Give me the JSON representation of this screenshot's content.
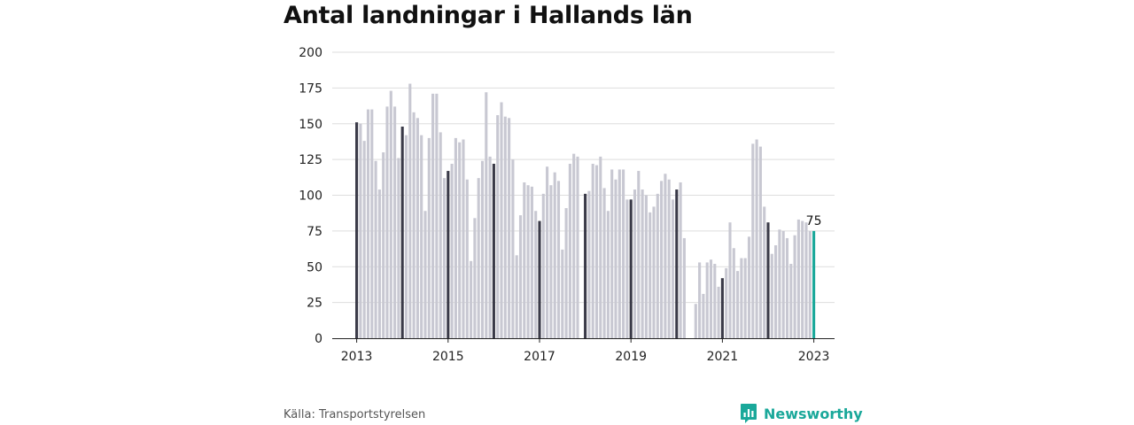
{
  "title": "Antal landningar i Hallands län",
  "source": "Källa: Transportstyrelsen",
  "brand": {
    "name": "Newsworthy",
    "icon": "newsworthy-logo-icon",
    "color": "#1aa89a"
  },
  "colors": {
    "bar": "#c8c8d2",
    "january": "#3a3a48",
    "latest": "#1aa89a",
    "grid": "#dddddd",
    "axis": "#222222"
  },
  "chart_data": {
    "type": "bar",
    "title": "Antal landningar i Hallands län",
    "xlabel": "",
    "ylabel": "",
    "ylim": [
      0,
      200
    ],
    "yticks": [
      0,
      25,
      50,
      75,
      100,
      125,
      150,
      175,
      200
    ],
    "xtick_labels": [
      "2013",
      "2015",
      "2017",
      "2019",
      "2021",
      "2023"
    ],
    "grid": true,
    "start": "2013-01",
    "interval": "month",
    "values": [
      151,
      150,
      138,
      160,
      160,
      124,
      104,
      130,
      162,
      173,
      162,
      126,
      148,
      142,
      178,
      158,
      154,
      142,
      89,
      140,
      171,
      171,
      144,
      112,
      117,
      122,
      140,
      137,
      139,
      111,
      54,
      84,
      112,
      124,
      172,
      127,
      122,
      156,
      165,
      155,
      154,
      125,
      58,
      86,
      109,
      107,
      106,
      89,
      82,
      101,
      120,
      107,
      116,
      110,
      62,
      91,
      122,
      129,
      127,
      0,
      101,
      103,
      122,
      121,
      127,
      105,
      89,
      118,
      111,
      118,
      118,
      97,
      97,
      104,
      117,
      104,
      100,
      88,
      92,
      101,
      110,
      115,
      111,
      97,
      104,
      109,
      70,
      0,
      0,
      24,
      53,
      31,
      53,
      55,
      52,
      36,
      42,
      49,
      81,
      63,
      47,
      56,
      56,
      71,
      136,
      139,
      134,
      92,
      81,
      59,
      65,
      76,
      75,
      70,
      52,
      72,
      83,
      82,
      81,
      75,
      75
    ],
    "highlight": {
      "january": "dark",
      "latest": "teal"
    },
    "data_labels": [
      {
        "index": 120,
        "text": "75"
      }
    ]
  }
}
